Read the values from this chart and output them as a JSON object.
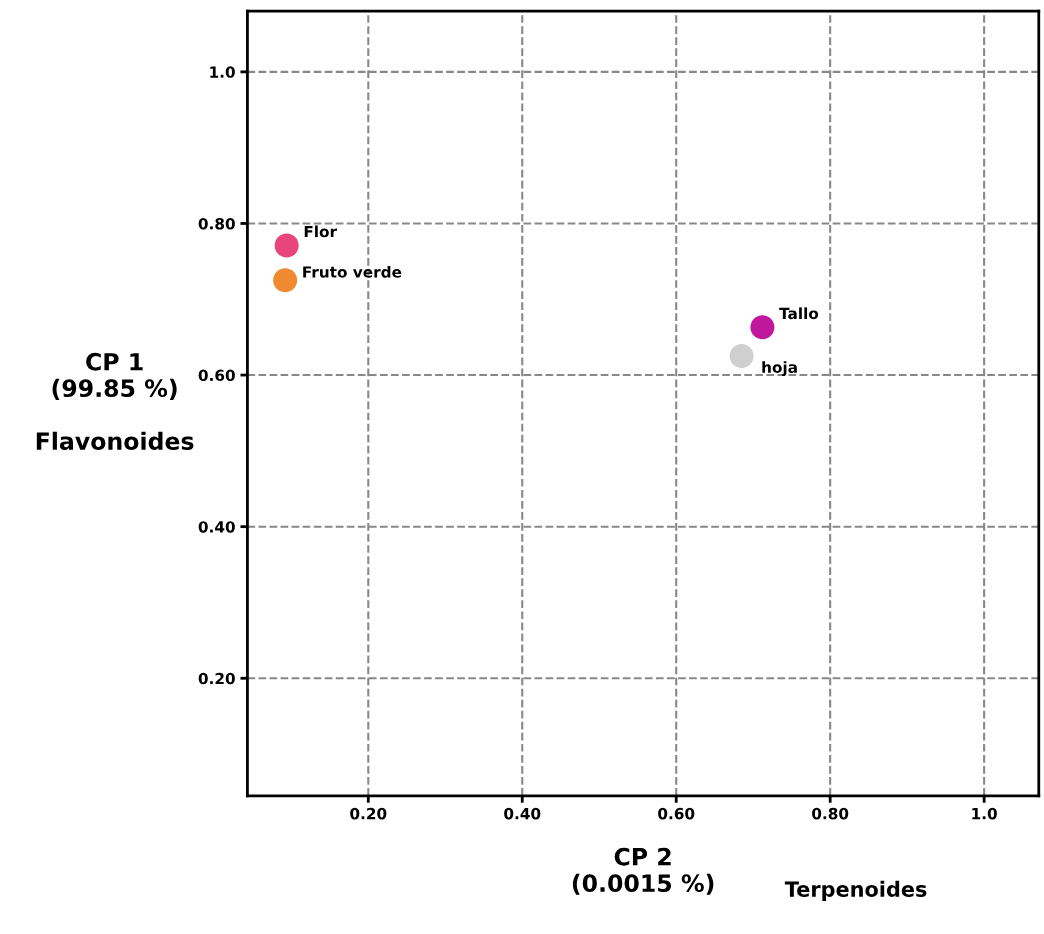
{
  "chart_data": {
    "type": "scatter",
    "xlabel": "CP 2\n(0.0015 %)",
    "ylabel": "CP 1\n(99.85 %)\n\nFlavonoides",
    "annotations": [
      "Terpenoides"
    ],
    "series": [
      {
        "name": "Flor",
        "color": "#e8457a",
        "x": [
          0.094
        ],
        "values": [
          0.771
        ]
      },
      {
        "name": "Fruto verde",
        "color": "#f08a30",
        "x": [
          0.092
        ],
        "values": [
          0.725
        ]
      },
      {
        "name": "Tallo",
        "color": "#c0189c",
        "x": [
          0.712
        ],
        "values": [
          0.663
        ]
      },
      {
        "name": "hoja",
        "color": "#cfcfcf",
        "x": [
          0.685
        ],
        "values": [
          0.625
        ]
      }
    ],
    "xlim": [
      0.043,
      1.071
    ],
    "ylim": [
      0.045,
      1.08
    ],
    "xticks": [
      {
        "value": 0.2,
        "label": "0.20"
      },
      {
        "value": 0.4,
        "label": "0.40"
      },
      {
        "value": 0.6,
        "label": "0.60"
      },
      {
        "value": 0.8,
        "label": "0.80"
      },
      {
        "value": 1.0,
        "label": "1.0"
      }
    ],
    "yticks": [
      {
        "value": 0.2,
        "label": "0.20"
      },
      {
        "value": 0.4,
        "label": "0.40"
      },
      {
        "value": 0.6,
        "label": "0.60"
      },
      {
        "value": 0.8,
        "label": "0.80"
      },
      {
        "value": 1.0,
        "label": "1.0"
      }
    ],
    "grid": true,
    "marker": "circle",
    "legend": false
  }
}
